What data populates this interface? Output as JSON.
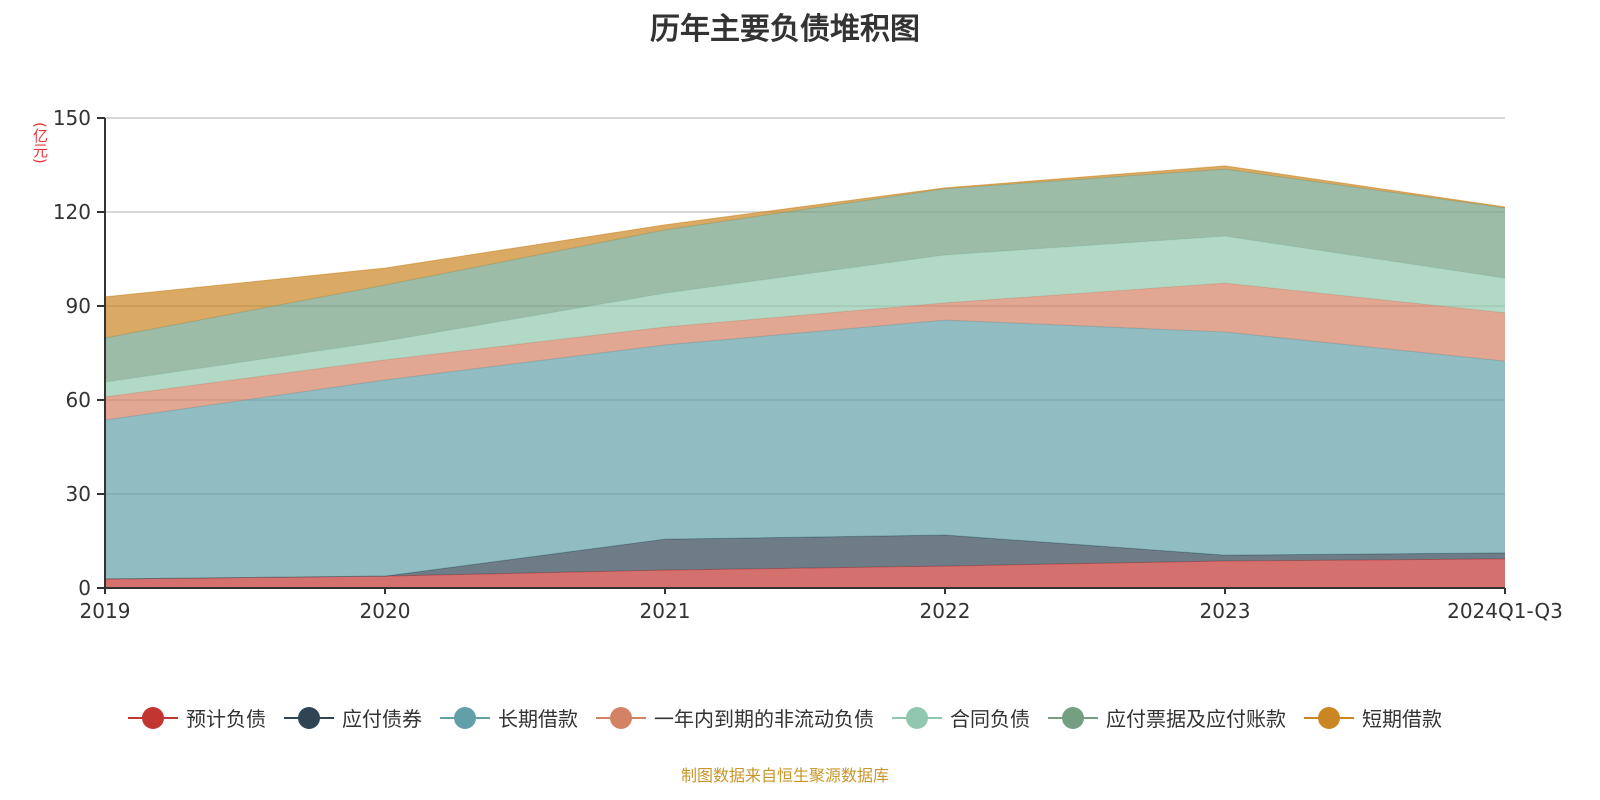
{
  "chart_data": {
    "type": "area",
    "stacked": true,
    "title": "历年主要负债堆积图",
    "ylabel": "(亿元)",
    "ylim": [
      0,
      150
    ],
    "yticks": [
      0,
      30,
      60,
      90,
      120,
      150
    ],
    "grid": true,
    "legend_position": "bottom",
    "categories": [
      "2019",
      "2020",
      "2021",
      "2022",
      "2023",
      "2024Q1-Q3"
    ],
    "series": [
      {
        "name": "预计负债",
        "color": "#c23531",
        "values": [
          2.9,
          3.8,
          5.7,
          7.0,
          8.6,
          9.3
        ]
      },
      {
        "name": "应付债券",
        "color": "#2f4554",
        "values": [
          0,
          0,
          9.9,
          9.9,
          1.9,
          1.9
        ]
      },
      {
        "name": "长期借款",
        "color": "#61a0a8",
        "values": [
          50.7,
          62.6,
          62.0,
          68.6,
          71.2,
          61.2
        ]
      },
      {
        "name": "一年内到期的非流动负债",
        "color": "#d48265",
        "values": [
          7.4,
          6.4,
          5.7,
          5.5,
          15.6,
          15.4
        ]
      },
      {
        "name": "合同负债",
        "color": "#91c7ae",
        "values": [
          4.7,
          6.0,
          10.8,
          15.3,
          15.0,
          11.1
        ]
      },
      {
        "name": "应付票据及应付账款",
        "color": "#749f83",
        "values": [
          14.1,
          17.9,
          20.2,
          21.1,
          21.4,
          22.4
        ]
      },
      {
        "name": "短期借款",
        "color": "#ca8622",
        "values": [
          13.1,
          5.4,
          1.6,
          0.3,
          1.0,
          0.3
        ]
      }
    ]
  },
  "source": "制图数据来自恒生聚源数据库"
}
